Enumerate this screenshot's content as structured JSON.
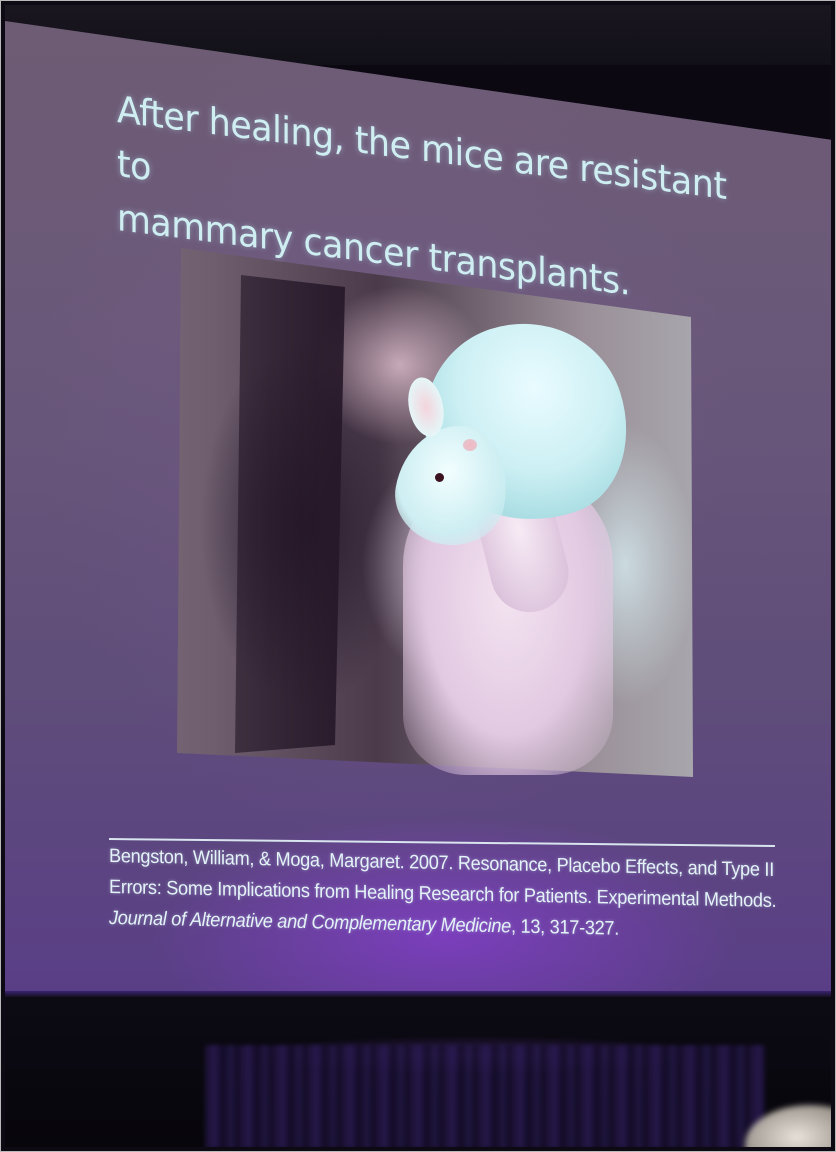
{
  "slide": {
    "title": "After healing, the mice  are resistant to\nmammary cancer transplants.",
    "photo_alt": "Researcher holding a white mouse in a gloved hand",
    "citation": {
      "authors": "Bengston, William, & Moga, Margaret. 2007. Resonance, Placebo Effects, and Type II Errors: Some Implications from Healing Research for Patients. Experimental Methods.",
      "journal": "Journal of Alternative and Complementary Medicine",
      "separator": ",",
      "volume_pages": "13, 317-327."
    }
  },
  "colors": {
    "slide_background": "#6a587a",
    "text": "#cfeef2",
    "accent_glow": "#963ceb"
  }
}
